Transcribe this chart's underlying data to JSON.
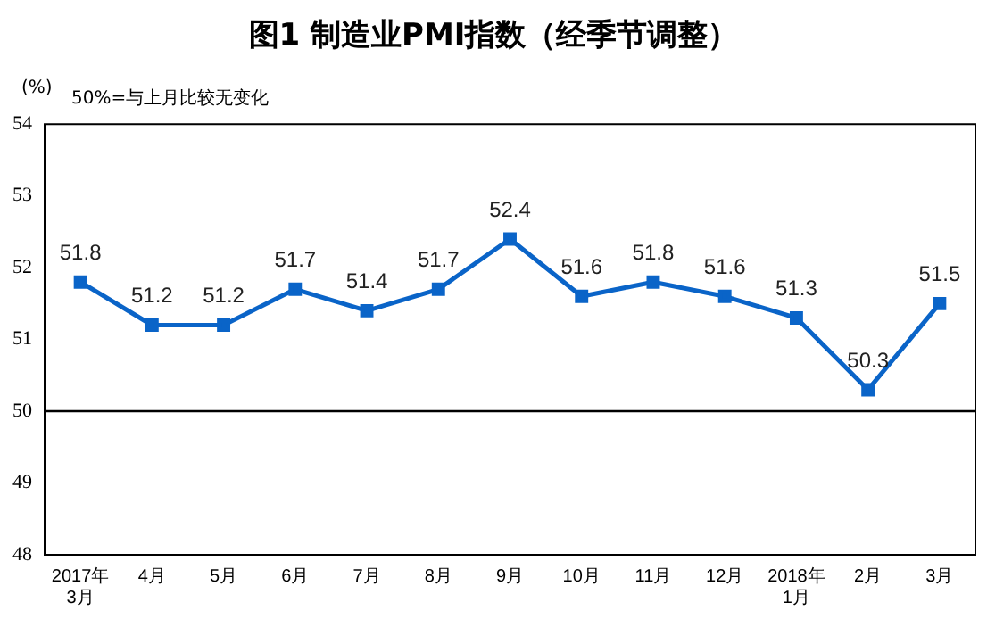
{
  "chart_data": {
    "type": "line",
    "title": "图1 制造业PMI指数（经季节调整）",
    "ylabel": "(%)",
    "annotations": [
      "50%=与上月比较无变化"
    ],
    "categories": [
      "2017年\n3月",
      "4月",
      "5月",
      "6月",
      "7月",
      "8月",
      "9月",
      "10月",
      "11月",
      "12月",
      "2018年\n1月",
      "2月",
      "3月"
    ],
    "series": [
      {
        "color": "#0a64c8",
        "values": [
          51.8,
          51.2,
          51.2,
          51.7,
          51.4,
          51.7,
          52.4,
          51.6,
          51.8,
          51.6,
          51.3,
          50.3,
          51.5
        ]
      }
    ],
    "ylim": [
      48,
      54
    ],
    "yticks": [
      48,
      49,
      50,
      51,
      52,
      53,
      54
    ],
    "grid": false,
    "legend": false,
    "marker": "square",
    "line_style": "solid",
    "data_labels": true,
    "ref_lines": [
      {
        "axis": "y",
        "value": 50,
        "color": "#000000"
      }
    ]
  }
}
